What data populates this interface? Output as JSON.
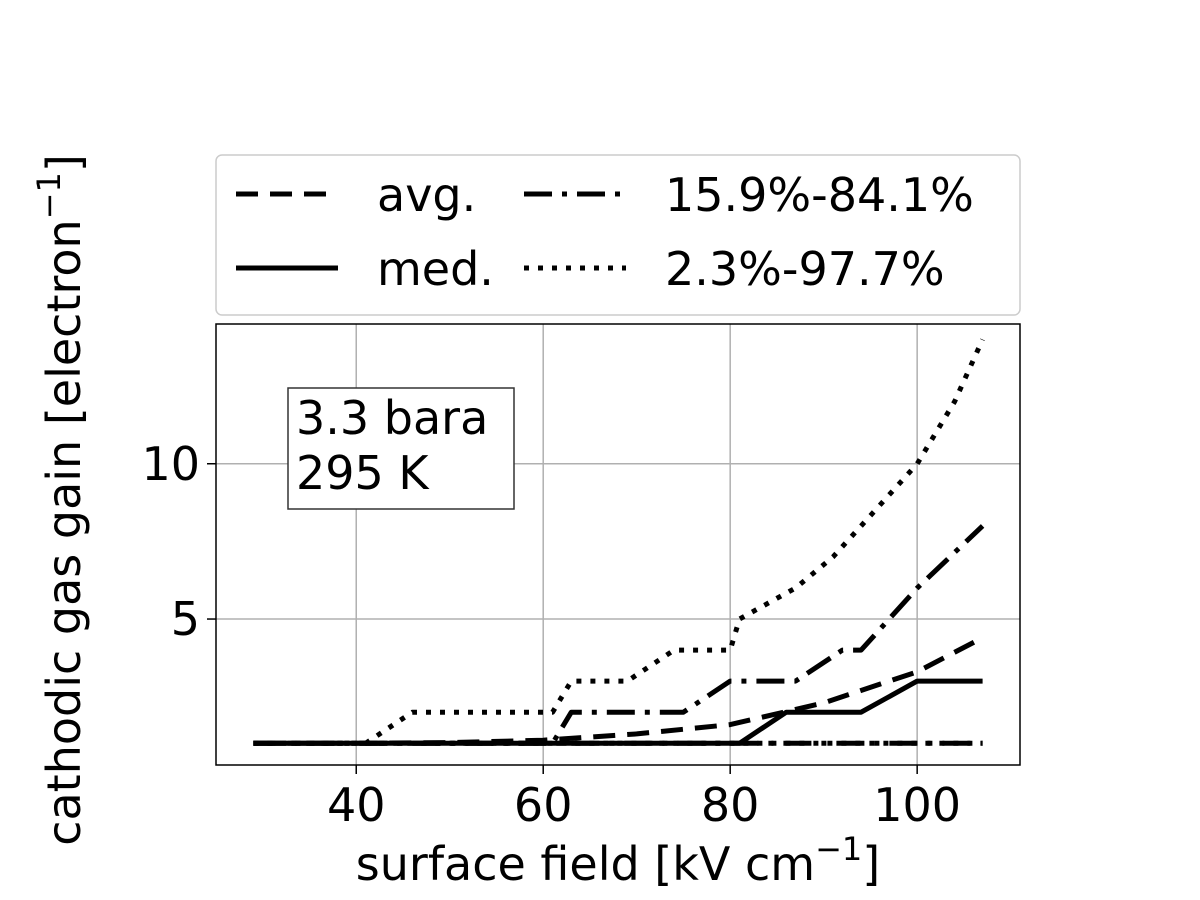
{
  "chart_data": {
    "type": "line",
    "xlabel": "surface field [kV cm",
    "xlabel_sup": "−1",
    "xlabel_end": "]",
    "ylabel": "cathodic gas gain [electron",
    "ylabel_sup": "−1",
    "ylabel_end": "]",
    "xlim": [
      25,
      111
    ],
    "ylim": [
      0.3,
      14.5
    ],
    "x_ticks": [
      40,
      60,
      80,
      100
    ],
    "y_ticks": [
      5,
      10
    ],
    "grid": true,
    "legend_placement": "above-plot",
    "annotation": {
      "line1": "3.3 bara",
      "line2": "295 K"
    },
    "series": [
      {
        "name": "avg.",
        "style": "dashed",
        "points": [
          [
            29,
            1.0
          ],
          [
            40,
            1.0
          ],
          [
            50,
            1.02
          ],
          [
            60,
            1.1
          ],
          [
            70,
            1.3
          ],
          [
            80,
            1.6
          ],
          [
            90,
            2.3
          ],
          [
            100,
            3.3
          ],
          [
            107,
            4.4
          ]
        ]
      },
      {
        "name": "med.",
        "style": "solid",
        "points": [
          [
            29,
            1.0
          ],
          [
            81,
            1.0
          ],
          [
            86,
            2.0
          ],
          [
            94,
            2.0
          ],
          [
            100,
            3.0
          ],
          [
            107,
            3.0
          ]
        ]
      },
      {
        "name": "15.9%-84.1%",
        "style": "dashdot",
        "points": [
          [
            29,
            1.0
          ],
          [
            61,
            1.0
          ],
          [
            63,
            2.0
          ],
          [
            75,
            2.0
          ],
          [
            80,
            3.0
          ],
          [
            87,
            3.0
          ],
          [
            92,
            4.0
          ],
          [
            94,
            4.0
          ],
          [
            100,
            6.0
          ],
          [
            107,
            8.0
          ]
        ]
      },
      {
        "name": "15.9%-84.1% lower",
        "legend": false,
        "style": "dashdot",
        "points": [
          [
            29,
            1.0
          ],
          [
            107,
            1.0
          ]
        ]
      },
      {
        "name": "2.3%-97.7%",
        "style": "dotted",
        "points": [
          [
            29,
            1.0
          ],
          [
            41,
            1.0
          ],
          [
            46,
            2.0
          ],
          [
            61,
            2.0
          ],
          [
            63,
            3.0
          ],
          [
            69,
            3.0
          ],
          [
            74,
            4.0
          ],
          [
            80,
            4.0
          ],
          [
            81,
            5.0
          ],
          [
            87,
            6.0
          ],
          [
            91,
            7.0
          ],
          [
            94,
            8.0
          ],
          [
            100,
            10.0
          ],
          [
            104,
            12.0
          ],
          [
            107,
            14.0
          ]
        ]
      },
      {
        "name": "2.3%-97.7% lower",
        "legend": false,
        "style": "dotted",
        "points": [
          [
            29,
            1.0
          ],
          [
            107,
            1.0
          ]
        ]
      }
    ]
  },
  "colors": {
    "line": "#000000",
    "grid": "#b0b0b0",
    "legend_border": "#cccccc"
  }
}
